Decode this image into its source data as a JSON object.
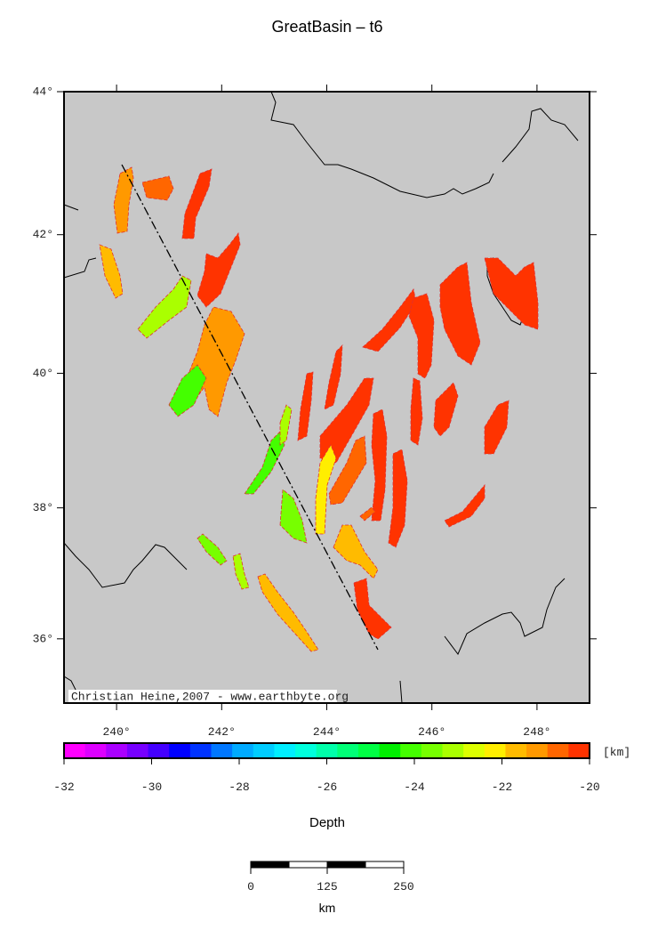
{
  "chart_data": {
    "type": "map",
    "title": "GreatBasin – t6",
    "credit": "Christian Heine,2007 - www.earthbyte.org",
    "projection": "mercator",
    "xlim": [
      239,
      249
    ],
    "ylim": [
      35,
      44
    ],
    "xticks": [
      {
        "value": 240,
        "label": "240°"
      },
      {
        "value": 242,
        "label": "242°"
      },
      {
        "value": 244,
        "label": "244°"
      },
      {
        "value": 246,
        "label": "246°"
      },
      {
        "value": 248,
        "label": "248°"
      }
    ],
    "yticks": [
      {
        "value": 36,
        "label": "36°"
      },
      {
        "value": 38,
        "label": "38°"
      },
      {
        "value": 40,
        "label": "40°"
      },
      {
        "value": 42,
        "label": "42°"
      },
      {
        "value": 44,
        "label": "44°"
      }
    ],
    "colorbar": {
      "label": "Depth",
      "unit_label": "[km]",
      "lim": [
        -32,
        -20
      ],
      "ticks": [
        -32,
        -30,
        -28,
        -26,
        -24,
        -22,
        -20
      ],
      "colors": [
        "#ff00ff",
        "#dd00ff",
        "#aa00ff",
        "#7700ff",
        "#4400ff",
        "#0000ff",
        "#0033ff",
        "#0077ff",
        "#00aaff",
        "#00ccff",
        "#00eeff",
        "#00ffdd",
        "#00ffaa",
        "#00ff77",
        "#00ff44",
        "#00ee00",
        "#44ff00",
        "#77ff00",
        "#aaff00",
        "#ddff00",
        "#ffee00",
        "#ffbb00",
        "#ff9900",
        "#ff6600",
        "#ff3300"
      ]
    },
    "scale_bar": {
      "unit": "km",
      "lim": [
        0,
        250
      ],
      "ticks": [
        0,
        125,
        250
      ]
    }
  }
}
